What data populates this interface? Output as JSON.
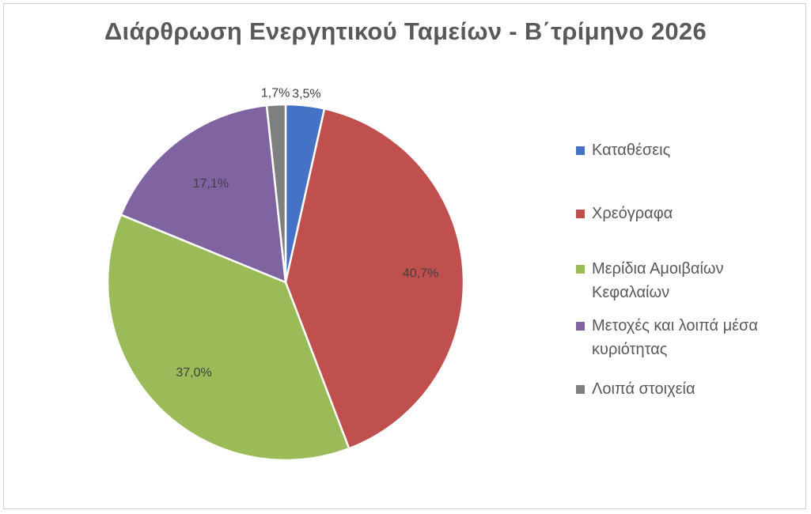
{
  "chart_data": {
    "type": "pie",
    "title": "Διάρθρωση Ενεργητικού Ταμείων - Β΄τρίμηνο 2026",
    "legend_position": "right",
    "slices": [
      {
        "label": "Καταθέσεις",
        "value": 3.5,
        "display": "3,5%",
        "color": "#4472C4"
      },
      {
        "label": "Χρεόγραφα",
        "value": 40.7,
        "display": "40,7%",
        "color": "#C0504D"
      },
      {
        "label": "Μερίδια Αμοιβαίων Κεφαλαίων",
        "value": 37.0,
        "display": "37,0%",
        "color": "#9BBB59"
      },
      {
        "label": "Μετοχές και λοιπά μέσα κυριότητας",
        "value": 17.1,
        "display": "17,1%",
        "color": "#8064A2"
      },
      {
        "label": "Λοιπά στοιχεία",
        "value": 1.7,
        "display": "1,7%",
        "color": "#7F7F7F"
      }
    ]
  }
}
